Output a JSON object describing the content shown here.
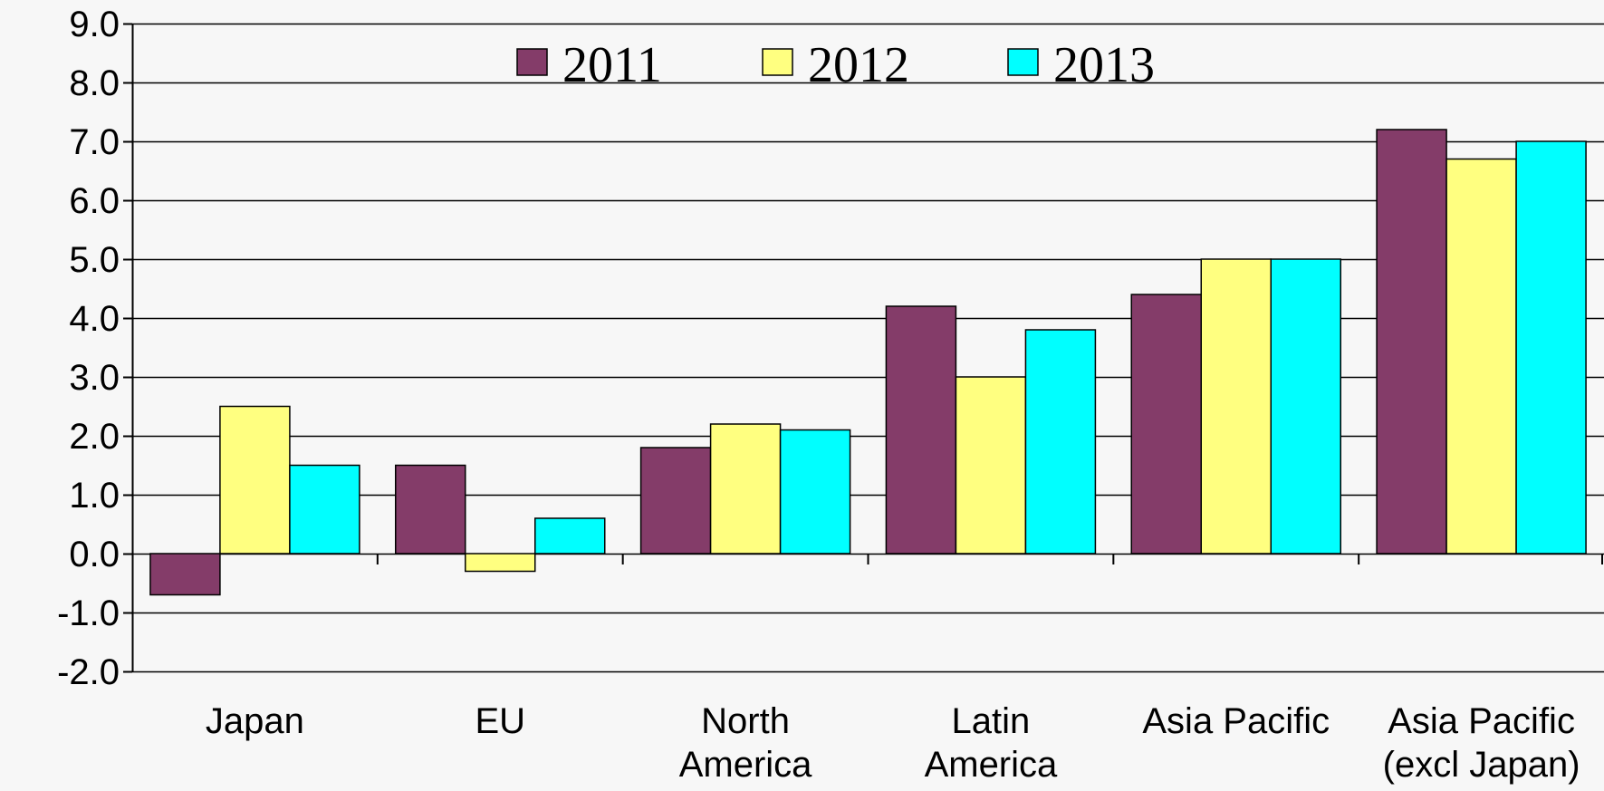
{
  "chart_data": {
    "type": "bar",
    "categories": [
      [
        "Japan"
      ],
      [
        "EU"
      ],
      [
        "North",
        "America"
      ],
      [
        "Latin",
        "America"
      ],
      [
        "Asia Pacific"
      ],
      [
        "Asia Pacific",
        "(excl Japan)"
      ]
    ],
    "series": [
      {
        "name": "2011",
        "color": "#843c69",
        "values": [
          -0.7,
          1.5,
          1.8,
          4.2,
          4.4,
          7.2
        ]
      },
      {
        "name": "2012",
        "color": "#ffff80",
        "values": [
          2.5,
          -0.3,
          2.2,
          3.0,
          5.0,
          6.7
        ]
      },
      {
        "name": "2013",
        "color": "#00ffff",
        "values": [
          1.5,
          0.6,
          2.1,
          3.8,
          5.0,
          7.0
        ]
      }
    ],
    "ylim": [
      -2.0,
      9.0
    ],
    "y_ticks": [
      "9.0",
      "8.0",
      "7.0",
      "6.0",
      "5.0",
      "4.0",
      "3.0",
      "2.0",
      "1.0",
      "0.0",
      "-1.0",
      "-2.0"
    ],
    "grid": true,
    "legend_position": "top-center",
    "title": "",
    "xlabel": "",
    "ylabel": ""
  }
}
